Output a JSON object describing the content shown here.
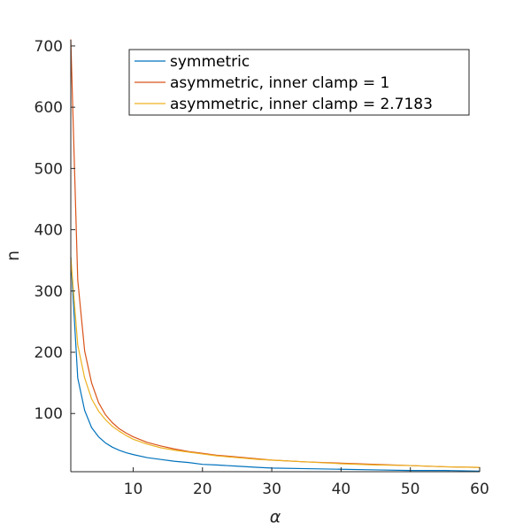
{
  "chart_data": {
    "type": "line",
    "xlabel": "α",
    "ylabel": "n",
    "xlim": [
      1,
      60
    ],
    "ylim": [
      5,
      710
    ],
    "xticks": [
      10,
      20,
      30,
      40,
      50,
      60
    ],
    "yticks": [
      100,
      200,
      300,
      400,
      500,
      600,
      700
    ],
    "grid": false,
    "legend_position": "top-right",
    "x": [
      1,
      2,
      3,
      4,
      5,
      6,
      7,
      8,
      9,
      10,
      12,
      14,
      16,
      18,
      20,
      22,
      25,
      28,
      30,
      35,
      40,
      45,
      50,
      55,
      60
    ],
    "series": [
      {
        "name": "symmetric",
        "color": "#0072BD",
        "values": [
          355,
          158,
          105,
          77,
          62,
          52,
          45,
          40,
          36,
          33,
          28,
          25,
          22,
          20,
          17,
          16,
          14,
          12,
          11,
          10,
          9,
          8,
          7,
          7,
          6
        ]
      },
      {
        "name": "asymmetric, inner clamp = 1",
        "color": "#D95319",
        "values": [
          710,
          318,
          202,
          150,
          118,
          98,
          85,
          75,
          68,
          62,
          53,
          47,
          42,
          38,
          35,
          32,
          29,
          26,
          24,
          21,
          19,
          17,
          15,
          13,
          12
        ]
      },
      {
        "name": "asymmetric, inner clamp = 2.7183",
        "color": "#EDB120",
        "values": [
          355,
          212,
          158,
          124,
          104,
          90,
          79,
          71,
          64,
          58,
          50,
          44,
          40,
          37,
          34,
          31,
          28,
          25,
          24,
          21,
          18,
          16,
          15,
          13,
          12
        ]
      }
    ]
  }
}
